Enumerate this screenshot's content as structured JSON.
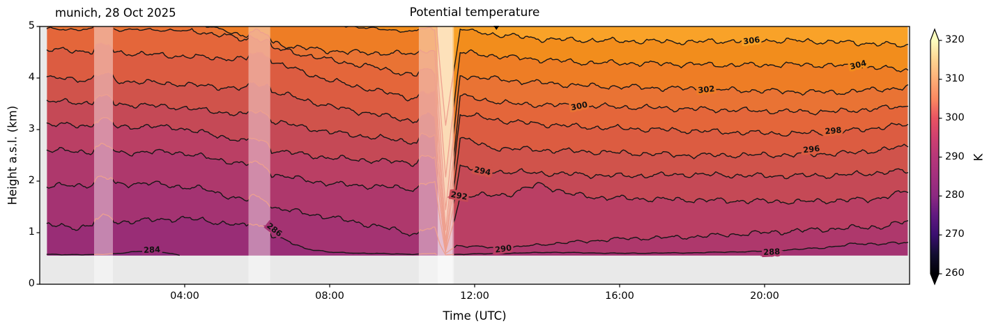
{
  "figure": {
    "title": "Potential temperature",
    "station_date": "munich, 28 Oct 2025",
    "xlabel": "Time (UTC)",
    "ylabel": "Height a.s.l. (km)",
    "colorbar_label": "K"
  },
  "axes": {
    "x_tick_labels": [
      "04:00",
      "08:00",
      "12:00",
      "16:00",
      "20:00"
    ],
    "x_tick_hours": [
      4,
      8,
      12,
      16,
      20
    ],
    "x_range_hours": [
      0,
      24
    ],
    "y_tick_labels": [
      "0",
      "1",
      "2",
      "3",
      "4",
      "5"
    ],
    "y_tick_values": [
      0,
      1,
      2,
      3,
      4,
      5
    ],
    "y_range_km": [
      0,
      5
    ],
    "top_marker_hour": 12.6
  },
  "colors": {
    "axes_bg": "#e9e9e9",
    "frame": "#000000",
    "contour_line": "#161616",
    "faded_contour_line": "#eea08f",
    "overlay_white_alpha": 0.42,
    "inner_overlay_white_alpha": 0.45,
    "label_text": "#111111",
    "band_fills": [
      "#8c2a7b",
      "#992d76",
      "#a43372",
      "#ae386c",
      "#ba3f64",
      "#c54956",
      "#d0534b",
      "#dc5c41",
      "#e4663a",
      "#e97334",
      "#ee7d25",
      "#f28d1c",
      "#f9a228"
    ],
    "cbar_stops": [
      {
        "frac": 0.0,
        "color": "#000004"
      },
      {
        "frac": 0.083,
        "color": "#120d31"
      },
      {
        "frac": 0.167,
        "color": "#3b0f70"
      },
      {
        "frac": 0.25,
        "color": "#611980"
      },
      {
        "frac": 0.333,
        "color": "#8c2981"
      },
      {
        "frac": 0.417,
        "color": "#a3307e"
      },
      {
        "frac": 0.5,
        "color": "#b73779"
      },
      {
        "frac": 0.583,
        "color": "#cf4070"
      },
      {
        "frac": 0.667,
        "color": "#e85362"
      },
      {
        "frac": 0.75,
        "color": "#fc8961"
      },
      {
        "frac": 0.833,
        "color": "#feae77"
      },
      {
        "frac": 0.917,
        "color": "#fdd592"
      },
      {
        "frac": 1.0,
        "color": "#fcfdbf"
      }
    ],
    "cbar_over_color": "#fcfdbf",
    "cbar_under_color": "#000004"
  },
  "chart_data": {
    "type": "contour",
    "title": "Potential temperature",
    "station_date": "munich, 28 Oct 2025",
    "xlabel": "Time (UTC)",
    "ylabel": "Height a.s.l. (km)",
    "unit": "K",
    "x_range_hours": [
      0,
      24
    ],
    "data_hours_range": [
      0.2,
      23.95
    ],
    "y_range_km": [
      0,
      5
    ],
    "data_base_km": 0.555,
    "level_step_K": 2,
    "levels_K": [
      284,
      286,
      288,
      290,
      292,
      294,
      296,
      298,
      300,
      302,
      304,
      306
    ],
    "colorbar": {
      "min": 260,
      "max": 320,
      "ticks": [
        260,
        270,
        280,
        290,
        300,
        310,
        320
      ],
      "extend": "both"
    },
    "quality_bands_hours": [
      [
        1.5,
        2.02
      ],
      [
        5.76,
        6.36
      ],
      [
        10.46,
        11.43
      ]
    ],
    "inner_band_hours": [
      10.98,
      11.39
    ],
    "contour_lines": [
      {
        "level": 284,
        "anchors": [
          [
            0.2,
            0.58
          ],
          [
            1.4,
            0.57
          ],
          [
            2.2,
            0.6
          ],
          [
            3.1,
            0.66
          ],
          [
            3.8,
            0.57
          ],
          [
            4.3,
            0.5
          ],
          [
            4.5,
            0.42
          ]
        ]
      },
      {
        "level": 286,
        "anchors": [
          [
            0.2,
            1.15
          ],
          [
            1.0,
            1.1
          ],
          [
            2.0,
            1.2
          ],
          [
            4.0,
            1.28
          ],
          [
            5.5,
            1.15
          ],
          [
            6.4,
            0.95
          ],
          [
            7.3,
            0.7
          ],
          [
            8.0,
            0.62
          ],
          [
            9.0,
            0.6
          ],
          [
            10.45,
            0.58
          ],
          [
            10.9,
            0.6
          ],
          [
            11.1,
            0.5
          ],
          [
            11.3,
            0.42
          ]
        ]
      },
      {
        "level": 288,
        "anchors": [
          [
            0.2,
            1.9
          ],
          [
            1.5,
            1.93
          ],
          [
            3.0,
            1.96
          ],
          [
            4.5,
            1.85
          ],
          [
            6.3,
            1.5
          ],
          [
            8.0,
            1.3
          ],
          [
            9.5,
            1.1
          ],
          [
            10.45,
            0.95
          ],
          [
            10.9,
            0.95
          ],
          [
            11.2,
            0.57
          ],
          [
            11.5,
            0.58
          ],
          [
            13.0,
            0.6
          ],
          [
            14.0,
            0.62
          ],
          [
            16.0,
            0.6
          ],
          [
            18.0,
            0.61
          ],
          [
            20.0,
            0.64
          ],
          [
            21.5,
            0.7
          ],
          [
            22.5,
            0.78
          ],
          [
            23.95,
            0.8
          ]
        ]
      },
      {
        "level": 290,
        "anchors": [
          [
            0.2,
            2.6
          ],
          [
            2.0,
            2.55
          ],
          [
            3.7,
            2.57
          ],
          [
            5.5,
            2.35
          ],
          [
            6.3,
            2.14
          ],
          [
            8.0,
            1.95
          ],
          [
            10.2,
            1.86
          ],
          [
            10.45,
            1.83
          ],
          [
            10.9,
            1.85
          ],
          [
            11.2,
            0.6
          ],
          [
            11.5,
            0.75
          ],
          [
            12.8,
            0.7
          ],
          [
            14.0,
            0.78
          ],
          [
            16.0,
            0.88
          ],
          [
            18.0,
            0.92
          ],
          [
            20.0,
            1.0
          ],
          [
            22.0,
            1.08
          ],
          [
            23.3,
            1.12
          ],
          [
            23.95,
            1.22
          ]
        ]
      },
      {
        "level": 292,
        "anchors": [
          [
            0.2,
            3.1
          ],
          [
            2.0,
            3.06
          ],
          [
            3.7,
            3.05
          ],
          [
            5.5,
            2.8
          ],
          [
            6.3,
            2.61
          ],
          [
            8.0,
            2.45
          ],
          [
            10.2,
            2.36
          ],
          [
            10.9,
            2.35
          ],
          [
            11.2,
            0.64
          ],
          [
            11.6,
            1.7
          ],
          [
            13.0,
            1.75
          ],
          [
            13.8,
            1.95
          ],
          [
            14.6,
            1.75
          ],
          [
            15.5,
            1.68
          ],
          [
            17.0,
            1.65
          ],
          [
            19.0,
            1.62
          ],
          [
            21.0,
            1.6
          ],
          [
            23.0,
            1.65
          ],
          [
            23.95,
            1.8
          ]
        ]
      },
      {
        "level": 294,
        "anchors": [
          [
            0.2,
            3.55
          ],
          [
            2.0,
            3.5
          ],
          [
            3.7,
            3.44
          ],
          [
            5.5,
            3.3
          ],
          [
            6.3,
            3.18
          ],
          [
            8.0,
            2.95
          ],
          [
            10.2,
            2.77
          ],
          [
            10.9,
            2.75
          ],
          [
            11.2,
            0.68
          ],
          [
            11.6,
            2.3
          ],
          [
            12.2,
            2.2
          ],
          [
            14.0,
            2.15
          ],
          [
            16.0,
            2.1
          ],
          [
            18.0,
            2.13
          ],
          [
            20.0,
            2.1
          ],
          [
            22.0,
            2.11
          ],
          [
            23.95,
            2.2
          ]
        ]
      },
      {
        "level": 296,
        "anchors": [
          [
            0.2,
            4.0
          ],
          [
            2.0,
            3.95
          ],
          [
            3.7,
            3.89
          ],
          [
            6.3,
            3.76
          ],
          [
            8.0,
            3.45
          ],
          [
            10.2,
            3.18
          ],
          [
            10.9,
            3.15
          ],
          [
            11.2,
            0.74
          ],
          [
            11.6,
            2.85
          ],
          [
            12.4,
            2.65
          ],
          [
            14.0,
            2.6
          ],
          [
            16.0,
            2.55
          ],
          [
            18.0,
            2.5
          ],
          [
            20.8,
            2.51
          ],
          [
            22.5,
            2.55
          ],
          [
            23.95,
            2.67
          ]
        ]
      },
      {
        "level": 298,
        "anchors": [
          [
            0.2,
            4.55
          ],
          [
            2.0,
            4.5
          ],
          [
            3.7,
            4.43
          ],
          [
            6.3,
            4.34
          ],
          [
            8.0,
            3.95
          ],
          [
            10.2,
            3.62
          ],
          [
            10.9,
            3.58
          ],
          [
            11.2,
            0.85
          ],
          [
            11.6,
            3.3
          ],
          [
            13.0,
            3.15
          ],
          [
            15.0,
            3.05
          ],
          [
            17.0,
            3.0
          ],
          [
            19.0,
            2.95
          ],
          [
            20.7,
            2.92
          ],
          [
            22.0,
            2.95
          ],
          [
            23.95,
            3.1
          ]
        ]
      },
      {
        "level": 300,
        "anchors": [
          [
            0.2,
            4.95
          ],
          [
            3.7,
            4.93
          ],
          [
            5.0,
            4.85
          ],
          [
            6.3,
            4.6
          ],
          [
            8.0,
            4.35
          ],
          [
            9.3,
            4.2
          ],
          [
            10.2,
            4.07
          ],
          [
            10.9,
            4.0
          ],
          [
            11.2,
            1.05
          ],
          [
            11.6,
            3.65
          ],
          [
            13.0,
            3.5
          ],
          [
            15.0,
            3.46
          ],
          [
            17.0,
            3.42
          ],
          [
            19.0,
            3.38
          ],
          [
            20.6,
            3.35
          ],
          [
            22.0,
            3.35
          ],
          [
            23.95,
            3.45
          ]
        ]
      },
      {
        "level": 302,
        "anchors": [
          [
            0.2,
            5.3
          ],
          [
            4.3,
            5.06
          ],
          [
            5.8,
            4.8
          ],
          [
            7.0,
            4.6
          ],
          [
            8.5,
            4.5
          ],
          [
            10.2,
            4.47
          ],
          [
            10.9,
            4.4
          ],
          [
            11.2,
            1.45
          ],
          [
            11.6,
            4.05
          ],
          [
            13.0,
            3.95
          ],
          [
            15.0,
            3.85
          ],
          [
            18.5,
            3.78
          ],
          [
            20.0,
            3.75
          ],
          [
            22.0,
            3.72
          ],
          [
            23.95,
            3.82
          ]
        ]
      },
      {
        "level": 304,
        "anchors": [
          [
            0.2,
            5.4
          ],
          [
            7.9,
            5.06
          ],
          [
            9.3,
            4.95
          ],
          [
            10.2,
            4.91
          ],
          [
            10.9,
            4.8
          ],
          [
            11.2,
            2.1
          ],
          [
            11.6,
            4.5
          ],
          [
            13.0,
            4.4
          ],
          [
            15.0,
            4.3
          ],
          [
            17.0,
            4.28
          ],
          [
            19.0,
            4.25
          ],
          [
            21.0,
            4.26
          ],
          [
            22.6,
            4.23
          ],
          [
            23.95,
            4.15
          ]
        ]
      },
      {
        "level": 306,
        "anchors": [
          [
            0.2,
            5.5
          ],
          [
            10.3,
            5.4
          ],
          [
            10.75,
            5.06
          ],
          [
            10.95,
            4.9
          ],
          [
            11.2,
            3.1
          ],
          [
            11.6,
            4.95
          ],
          [
            12.5,
            4.85
          ],
          [
            14.0,
            4.75
          ],
          [
            16.0,
            4.72
          ],
          [
            18.0,
            4.7
          ],
          [
            19.7,
            4.73
          ],
          [
            21.0,
            4.72
          ],
          [
            23.0,
            4.67
          ],
          [
            23.95,
            4.62
          ]
        ]
      }
    ],
    "contour_labels": [
      {
        "value": "284",
        "t": 3.1,
        "km": 0.67,
        "rot": -3
      },
      {
        "value": "286",
        "t": 6.43,
        "km": 1.07,
        "rot": 38
      },
      {
        "value": "288",
        "t": 20.2,
        "km": 0.63,
        "rot": -3
      },
      {
        "value": "290",
        "t": 12.8,
        "km": 0.69,
        "rot": -8
      },
      {
        "value": "292",
        "t": 11.56,
        "km": 1.72,
        "rot": 10
      },
      {
        "value": "294",
        "t": 12.2,
        "km": 2.2,
        "rot": 12
      },
      {
        "value": "296",
        "t": 21.3,
        "km": 2.62,
        "rot": -6
      },
      {
        "value": "298",
        "t": 21.9,
        "km": 2.98,
        "rot": -5
      },
      {
        "value": "300",
        "t": 14.9,
        "km": 3.46,
        "rot": -12
      },
      {
        "value": "302",
        "t": 18.4,
        "km": 3.78,
        "rot": -6
      },
      {
        "value": "304",
        "t": 22.6,
        "km": 4.26,
        "rot": -15
      },
      {
        "value": "306",
        "t": 19.65,
        "km": 4.73,
        "rot": -7
      }
    ]
  }
}
